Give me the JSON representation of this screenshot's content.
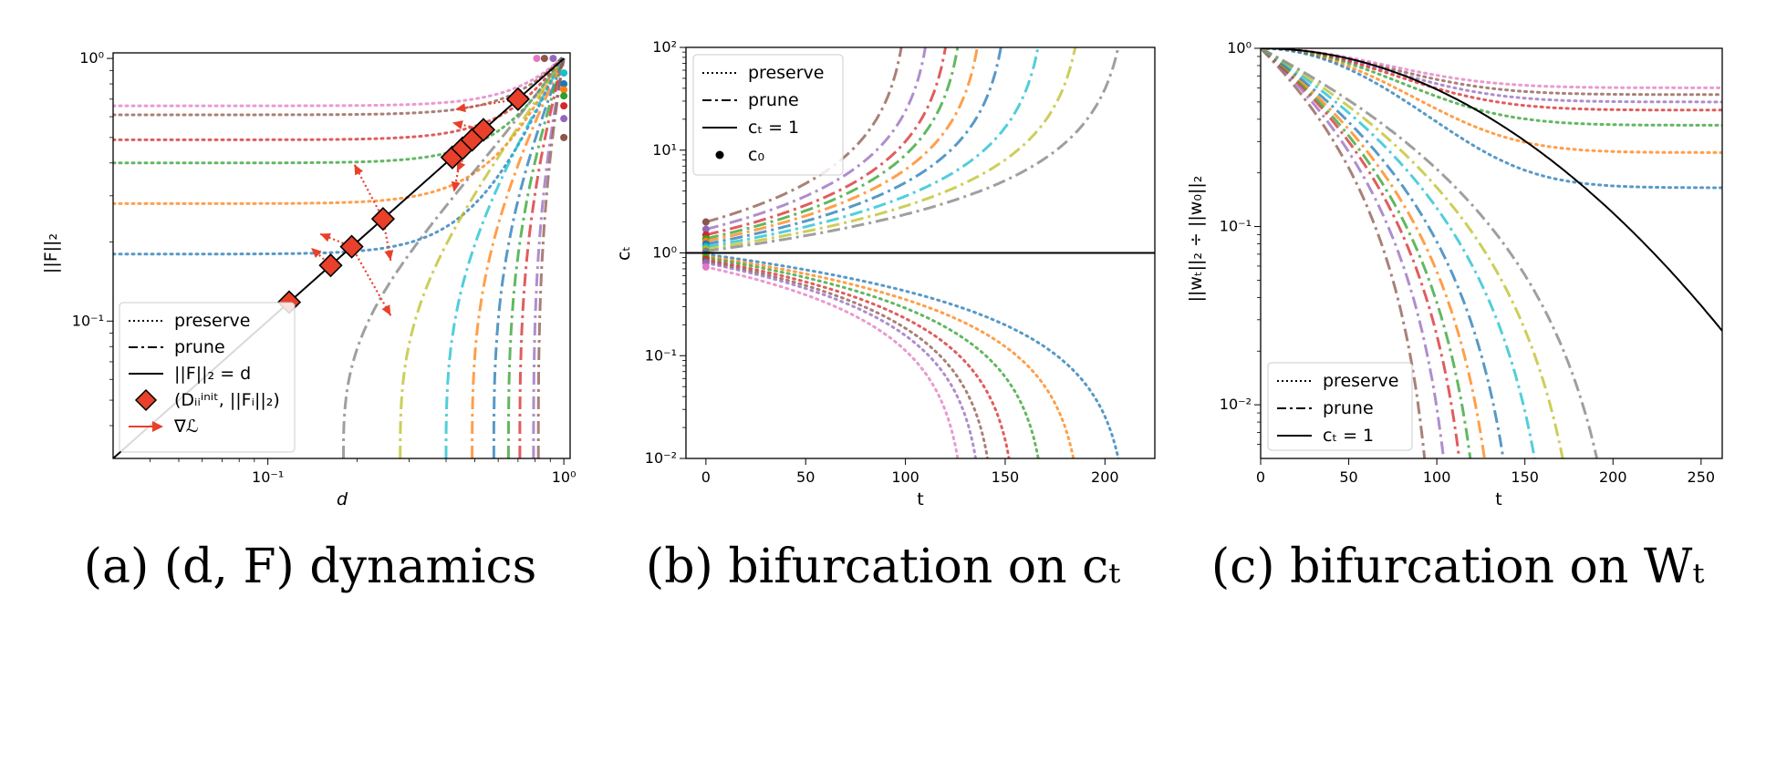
{
  "colors": {
    "tab10": [
      "#1f77b4",
      "#ff7f0e",
      "#2ca02c",
      "#d62728",
      "#9467bd",
      "#8c564b",
      "#e377c2",
      "#7f7f7f",
      "#bcbd22",
      "#17becf"
    ],
    "marker_fill": "#e8402a",
    "gradient_arrow": "#e8402a",
    "identity_line": "#000000"
  },
  "panels": [
    {
      "caption": "(a) (d, F) dynamics",
      "xlabel": "d",
      "ylabel": "||F||₂",
      "x_ticks": [
        "10⁻¹",
        "10⁰"
      ],
      "y_ticks": [
        "10⁻¹",
        "10⁰"
      ],
      "legend": {
        "position": "lower-left",
        "entries": [
          "preserve",
          "prune",
          "||F||₂ = d",
          "(Dᵢᵢⁱⁿⁱᵗ, ||Fᵢ||₂)",
          "∇ℒ"
        ]
      }
    },
    {
      "caption": "(b) bifurcation on cₜ",
      "xlabel": "t",
      "ylabel": "cₜ",
      "x_ticks": [
        "0",
        "50",
        "100",
        "150",
        "200"
      ],
      "y_ticks": [
        "10⁻²",
        "10⁻¹",
        "10⁰",
        "10¹",
        "10²"
      ],
      "legend": {
        "position": "upper-left",
        "entries": [
          "preserve",
          "prune",
          "cₜ = 1",
          "c₀"
        ]
      }
    },
    {
      "caption": "(c) bifurcation on Wₜ",
      "xlabel": "t",
      "ylabel": "||wₜ||₂ ÷ ||w₀||₂",
      "x_ticks": [
        "0",
        "50",
        "100",
        "150",
        "200",
        "250"
      ],
      "y_ticks": [
        "10⁻²",
        "10⁻¹",
        "10⁰"
      ],
      "legend": {
        "position": "lower-left",
        "entries": [
          "preserve",
          "prune",
          "cₜ = 1"
        ]
      }
    }
  ],
  "chart_data": [
    {
      "type": "line",
      "xscale": "log",
      "yscale": "log",
      "xlim": [
        0.03,
        1.05
      ],
      "ylim": [
        0.03,
        1.05
      ],
      "preserve_series": [
        {
          "color_index": 6,
          "start": 0.66,
          "end": 0.98
        },
        {
          "color_index": 5,
          "start": 0.61,
          "end": 0.98
        },
        {
          "color_index": 3,
          "start": 0.49,
          "end": 0.98
        },
        {
          "color_index": 2,
          "start": 0.4,
          "end": 0.98
        },
        {
          "color_index": 1,
          "start": 0.28,
          "end": 0.98
        },
        {
          "color_index": 0,
          "start": 0.18,
          "end": 0.98
        }
      ],
      "prune_series": [
        {
          "color_index": 7,
          "d_min": 0.18
        },
        {
          "color_index": 8,
          "d_min": 0.28
        },
        {
          "color_index": 9,
          "d_min": 0.4
        },
        {
          "color_index": 1,
          "d_min": 0.49
        },
        {
          "color_index": 0,
          "d_min": 0.58
        },
        {
          "color_index": 2,
          "d_min": 0.65
        },
        {
          "color_index": 3,
          "d_min": 0.71
        },
        {
          "color_index": 4,
          "d_min": 0.79
        },
        {
          "color_index": 5,
          "d_min": 0.82
        }
      ],
      "endpoints_y": [
        {
          "color_index": 6,
          "x": 0.81,
          "y": 1.0
        },
        {
          "color_index": 5,
          "x": 0.86,
          "y": 1.0
        },
        {
          "color_index": 4,
          "x": 0.92,
          "y": 1.0
        },
        {
          "color_index": 9,
          "x": 1.0,
          "y": 0.88
        },
        {
          "color_index": 0,
          "x": 1.0,
          "y": 0.8
        },
        {
          "color_index": 1,
          "x": 1.0,
          "y": 0.76
        },
        {
          "color_index": 2,
          "x": 1.0,
          "y": 0.72
        },
        {
          "color_index": 3,
          "x": 1.0,
          "y": 0.66
        },
        {
          "color_index": 4,
          "x": 1.0,
          "y": 0.59
        },
        {
          "color_index": 5,
          "x": 1.0,
          "y": 0.5
        }
      ],
      "init_points": [
        0.118,
        0.163,
        0.192,
        0.245,
        0.42,
        0.455,
        0.49,
        0.535,
        0.7
      ],
      "gradients": [
        {
          "from": [
            0.7,
            0.7
          ],
          "to": [
            0.43,
            0.64
          ]
        },
        {
          "from": [
            0.535,
            0.535
          ],
          "to": [
            0.42,
            0.57
          ]
        },
        {
          "from": [
            0.49,
            0.49
          ],
          "to": [
            0.435,
            0.37
          ]
        },
        {
          "from": [
            0.455,
            0.455
          ],
          "to": [
            0.425,
            0.31
          ]
        },
        {
          "from": [
            0.245,
            0.245
          ],
          "to": [
            0.196,
            0.395
          ]
        },
        {
          "from": [
            0.245,
            0.245
          ],
          "to": [
            0.26,
            0.17
          ]
        },
        {
          "from": [
            0.192,
            0.192
          ],
          "to": [
            0.15,
            0.215
          ]
        },
        {
          "from": [
            0.192,
            0.192
          ],
          "to": [
            0.26,
            0.105
          ]
        },
        {
          "from": [
            0.163,
            0.163
          ],
          "to": [
            0.14,
            0.19
          ]
        }
      ]
    },
    {
      "type": "line",
      "yscale": "log",
      "xlim": [
        -10,
        225
      ],
      "ylim": [
        0.01,
        100
      ],
      "x_ticks": [
        0,
        50,
        100,
        150,
        200
      ],
      "reference_line": 1,
      "prune_series": [
        {
          "color_index": 5,
          "c0": 2.0,
          "t_end": 103
        },
        {
          "color_index": 4,
          "c0": 1.7,
          "t_end": 115
        },
        {
          "color_index": 3,
          "c0": 1.5,
          "t_end": 125
        },
        {
          "color_index": 2,
          "c0": 1.38,
          "t_end": 131
        },
        {
          "color_index": 1,
          "c0": 1.3,
          "t_end": 141
        },
        {
          "color_index": 0,
          "c0": 1.22,
          "t_end": 153
        },
        {
          "color_index": 9,
          "c0": 1.15,
          "t_end": 172
        },
        {
          "color_index": 8,
          "c0": 1.09,
          "t_end": 191
        },
        {
          "color_index": 7,
          "c0": 1.04,
          "t_end": 213
        }
      ],
      "preserve_series": [
        {
          "color_index": 0,
          "c0": 0.97,
          "t_end": 213
        },
        {
          "color_index": 1,
          "c0": 0.93,
          "t_end": 190
        },
        {
          "color_index": 2,
          "c0": 0.9,
          "t_end": 172
        },
        {
          "color_index": 3,
          "c0": 0.86,
          "t_end": 157
        },
        {
          "color_index": 5,
          "c0": 0.83,
          "t_end": 146
        },
        {
          "color_index": 4,
          "c0": 0.8,
          "t_end": 140
        },
        {
          "color_index": 6,
          "c0": 0.73,
          "t_end": 131
        }
      ]
    },
    {
      "type": "line",
      "yscale": "log",
      "xlim": [
        0,
        262
      ],
      "ylim": [
        0.005,
        1.0
      ],
      "x_ticks": [
        0,
        50,
        100,
        150,
        200,
        250
      ],
      "reference_curve": {
        "t_end": 262,
        "y_end": 0.026
      },
      "preserve_series": [
        {
          "color_index": 6,
          "y_end": 0.6
        },
        {
          "color_index": 5,
          "y_end": 0.55
        },
        {
          "color_index": 4,
          "y_end": 0.5
        },
        {
          "color_index": 3,
          "y_end": 0.45
        },
        {
          "color_index": 2,
          "y_end": 0.37
        },
        {
          "color_index": 1,
          "y_end": 0.26
        },
        {
          "color_index": 0,
          "y_end": 0.165
        }
      ],
      "prune_series": [
        {
          "color_index": 5,
          "t_end": 103
        },
        {
          "color_index": 4,
          "t_end": 115
        },
        {
          "color_index": 3,
          "t_end": 125
        },
        {
          "color_index": 2,
          "t_end": 132
        },
        {
          "color_index": 1,
          "t_end": 141
        },
        {
          "color_index": 0,
          "t_end": 153
        },
        {
          "color_index": 9,
          "t_end": 173
        },
        {
          "color_index": 8,
          "t_end": 191
        },
        {
          "color_index": 7,
          "t_end": 213
        }
      ]
    }
  ]
}
